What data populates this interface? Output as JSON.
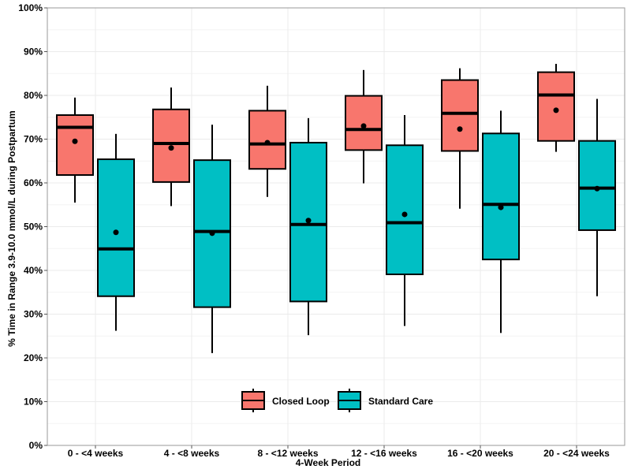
{
  "chart_data": {
    "type": "boxplot",
    "title": "",
    "xlabel": "4-Week Period",
    "ylabel": "% Time in Range 3.9-10.0 mmol/L during Postpartum",
    "ylim": [
      0,
      100
    ],
    "yticks": [
      "0%",
      "10%",
      "20%",
      "30%",
      "40%",
      "50%",
      "60%",
      "70%",
      "80%",
      "90%",
      "100%"
    ],
    "ytick_values": [
      0,
      10,
      20,
      30,
      40,
      50,
      60,
      70,
      80,
      90,
      100
    ],
    "categories": [
      "0 - <4 weeks",
      "4 - <8 weeks",
      "8 - <12 weeks",
      "12 - <16 weeks",
      "16 - <20 weeks",
      "20 - <24 weeks"
    ],
    "grid": true,
    "legend_position": "bottom-center",
    "series": [
      {
        "name": "Closed Loop",
        "color": "#F8766D",
        "boxes": [
          {
            "whisker_low": 55.5,
            "q1": 61.8,
            "median": 72.7,
            "q3": 75.5,
            "whisker_high": 79.5,
            "mean": 69.5
          },
          {
            "whisker_low": 54.7,
            "q1": 60.2,
            "median": 69.0,
            "q3": 76.8,
            "whisker_high": 81.8,
            "mean": 68.0
          },
          {
            "whisker_low": 56.8,
            "q1": 63.2,
            "median": 68.9,
            "q3": 76.5,
            "whisker_high": 82.2,
            "mean": 69.2
          },
          {
            "whisker_low": 59.9,
            "q1": 67.5,
            "median": 72.2,
            "q3": 79.9,
            "whisker_high": 85.8,
            "mean": 73.0
          },
          {
            "whisker_low": 54.1,
            "q1": 67.3,
            "median": 75.9,
            "q3": 83.5,
            "whisker_high": 86.2,
            "mean": 72.3
          },
          {
            "whisker_low": 67.1,
            "q1": 69.6,
            "median": 80.1,
            "q3": 85.3,
            "whisker_high": 87.2,
            "mean": 76.6
          }
        ]
      },
      {
        "name": "Standard Care",
        "color": "#00BFC4",
        "boxes": [
          {
            "whisker_low": 26.2,
            "q1": 34.1,
            "median": 44.9,
            "q3": 65.4,
            "whisker_high": 71.2,
            "mean": 48.7
          },
          {
            "whisker_low": 21.1,
            "q1": 31.6,
            "median": 48.9,
            "q3": 65.2,
            "whisker_high": 73.3,
            "mean": 48.5
          },
          {
            "whisker_low": 25.2,
            "q1": 32.9,
            "median": 50.5,
            "q3": 69.2,
            "whisker_high": 74.8,
            "mean": 51.4
          },
          {
            "whisker_low": 27.3,
            "q1": 39.1,
            "median": 50.9,
            "q3": 68.6,
            "whisker_high": 75.5,
            "mean": 52.8
          },
          {
            "whisker_low": 25.7,
            "q1": 42.5,
            "median": 55.1,
            "q3": 71.3,
            "whisker_high": 76.5,
            "mean": 54.4
          },
          {
            "whisker_low": 34.1,
            "q1": 49.2,
            "median": 58.8,
            "q3": 69.6,
            "whisker_high": 79.2,
            "mean": 58.7
          }
        ]
      }
    ]
  }
}
